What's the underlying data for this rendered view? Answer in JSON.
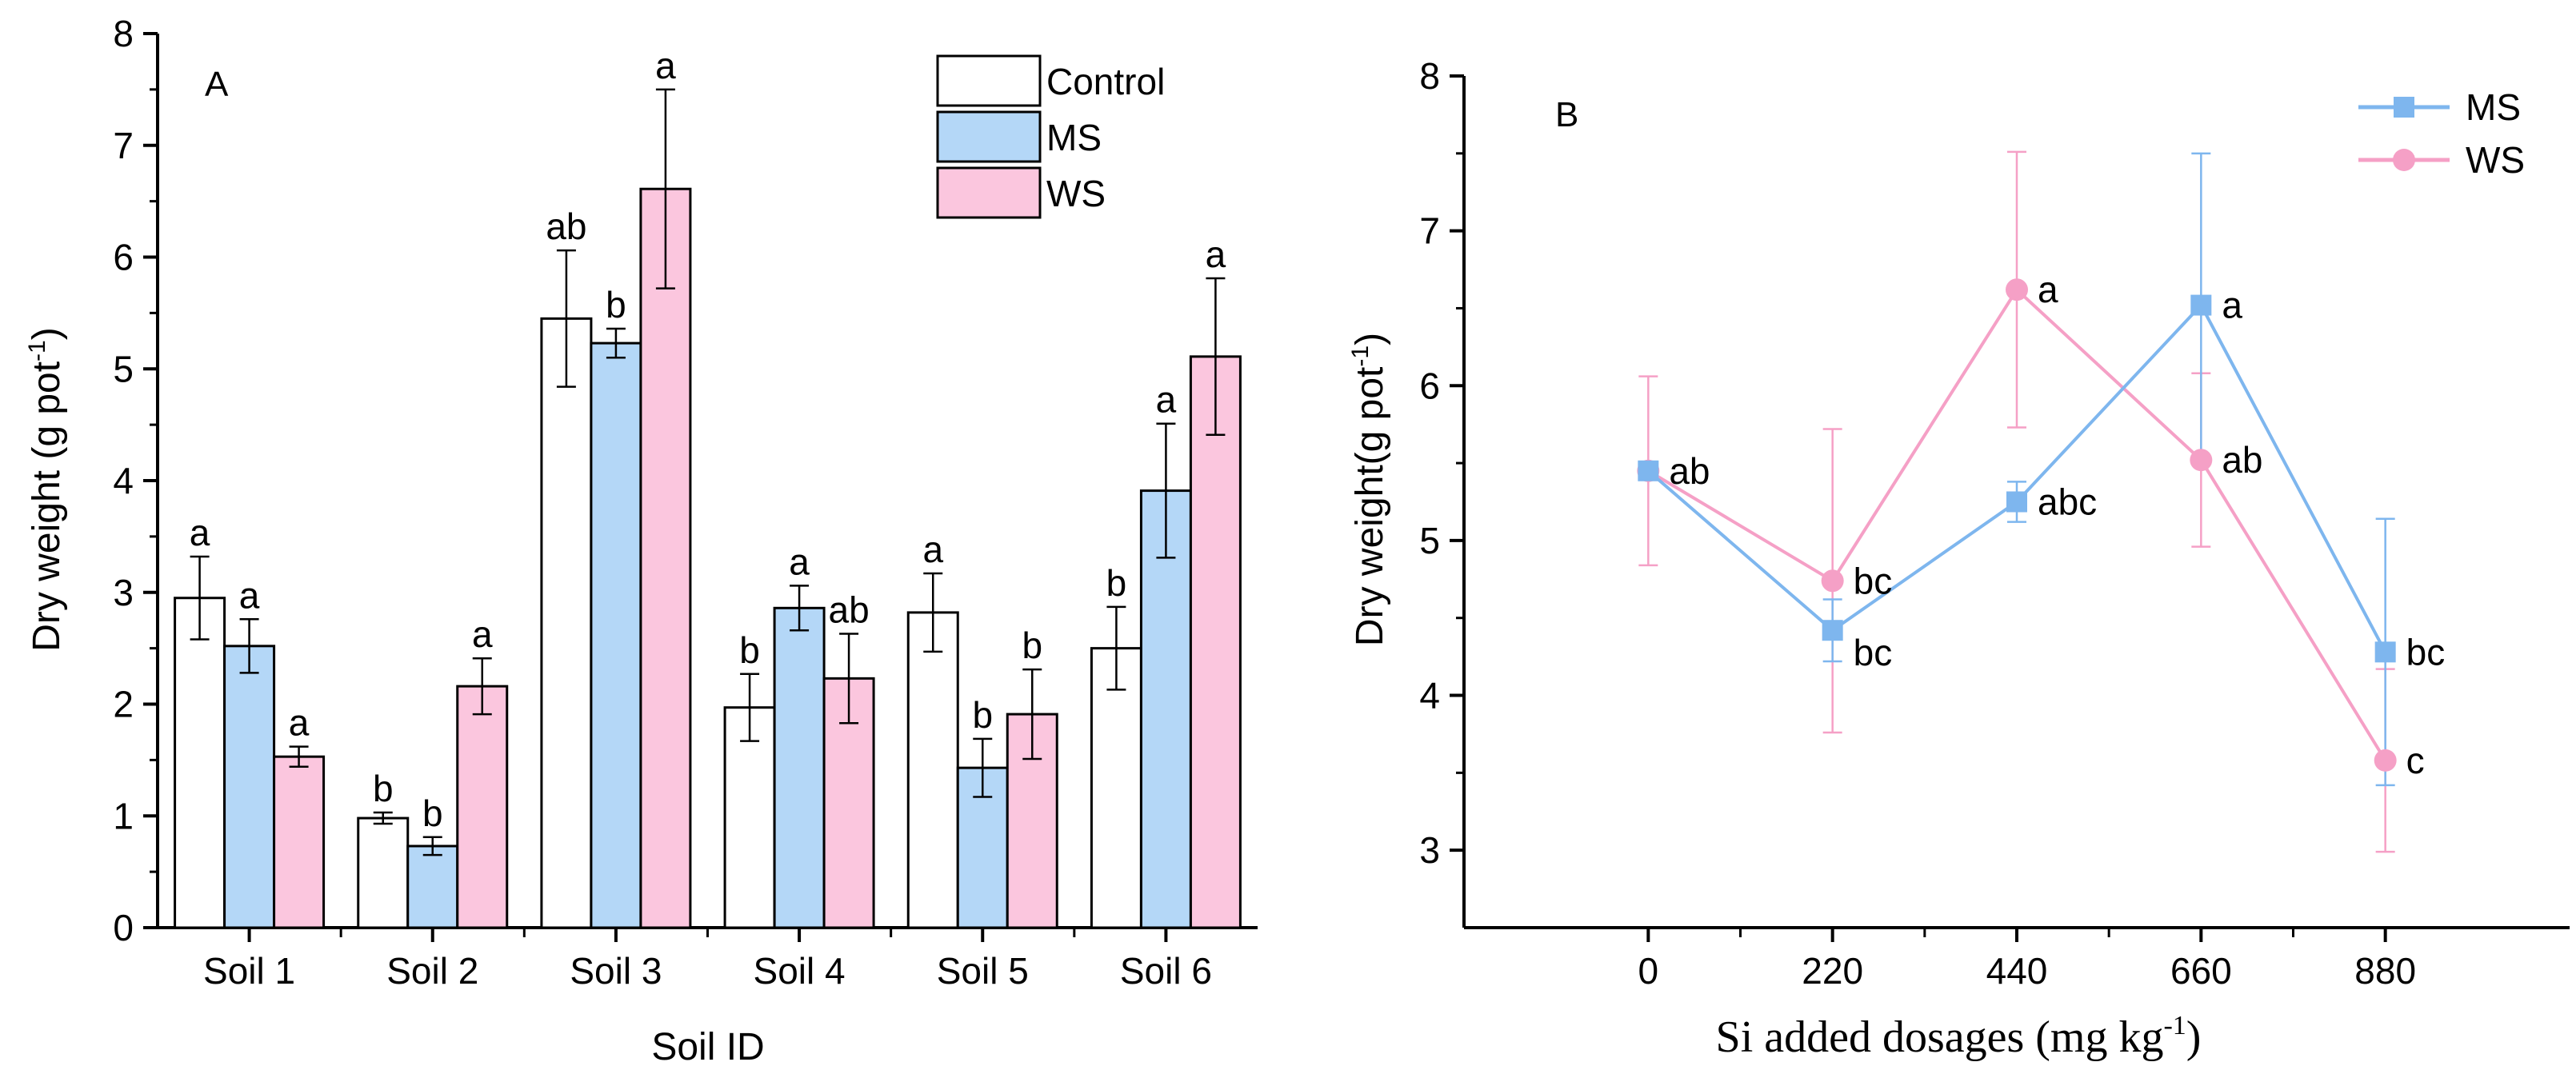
{
  "colors": {
    "axis": "#000000",
    "control_fill": "#ffffff",
    "ms_fill": "#b4d7f7",
    "ws_fill": "#fbc6de",
    "ms_line": "#7eb6ee",
    "ws_line": "#f5a0c6"
  },
  "chart_data": [
    {
      "panel_label": "A",
      "type": "bar",
      "title": "",
      "xlabel": "Soil ID",
      "ylabel": "Dry weight (g pot",
      "ylabel_sup": "-1",
      "ylabel_close": ")",
      "ylim": [
        0,
        8
      ],
      "yticks": [
        "0",
        "1",
        "2",
        "3",
        "4",
        "5",
        "6",
        "7",
        "8"
      ],
      "categories": [
        "Soil 1",
        "Soil 2",
        "Soil 3",
        "Soil 4",
        "Soil 5",
        "Soil 6"
      ],
      "legend_position": "top-right",
      "series": [
        {
          "name": "Control",
          "color_key": "control_fill",
          "values": [
            2.95,
            0.98,
            5.45,
            1.97,
            2.82,
            2.5
          ],
          "errors": [
            0.37,
            0.05,
            0.61,
            0.3,
            0.35,
            0.37
          ],
          "labels": [
            "a",
            "b",
            "ab",
            "b",
            "a",
            "b"
          ]
        },
        {
          "name": "MS",
          "color_key": "ms_fill",
          "values": [
            2.52,
            0.73,
            5.23,
            2.86,
            1.43,
            3.91
          ],
          "errors": [
            0.24,
            0.08,
            0.13,
            0.2,
            0.26,
            0.6
          ],
          "labels": [
            "a",
            "b",
            "b",
            "a",
            "b",
            "a"
          ]
        },
        {
          "name": "WS",
          "color_key": "ws_fill",
          "values": [
            1.53,
            2.16,
            6.61,
            2.23,
            1.91,
            5.11
          ],
          "errors": [
            0.09,
            0.25,
            0.89,
            0.4,
            0.4,
            0.7
          ],
          "labels": [
            "a",
            "a",
            "a",
            "ab",
            "b",
            "a"
          ]
        }
      ]
    },
    {
      "panel_label": "B",
      "type": "line",
      "title": "",
      "xlabel": "Si added dosages (mg kg",
      "xlabel_sup": "-1",
      "xlabel_close": ")",
      "ylabel": "Dry weight(g pot",
      "ylabel_sup": "-1",
      "ylabel_close": ")",
      "ylim": [
        2.5,
        8
      ],
      "yticks": [
        "3",
        "4",
        "5",
        "6",
        "7",
        "8"
      ],
      "xlim": [
        -220,
        1100
      ],
      "x": [
        0,
        220,
        440,
        660,
        880
      ],
      "xtick_labels": [
        "0",
        "220",
        "440",
        "660",
        "880"
      ],
      "legend_position": "top-right",
      "series": [
        {
          "name": "MS",
          "color_key": "ms_line",
          "marker": "square",
          "values": [
            5.45,
            4.42,
            5.25,
            6.52,
            4.28
          ],
          "errors": [
            0.0,
            0.2,
            0.13,
            0.98,
            0.86
          ],
          "labels": [
            "ab",
            "bc",
            "abc",
            "a",
            "bc"
          ]
        },
        {
          "name": "WS",
          "color_key": "ws_line",
          "marker": "circle",
          "values": [
            5.45,
            4.74,
            6.62,
            5.52,
            3.58
          ],
          "errors": [
            0.61,
            0.98,
            0.89,
            0.56,
            0.59
          ],
          "labels": [
            "",
            "bc",
            "a",
            "ab",
            "c"
          ]
        }
      ]
    }
  ]
}
